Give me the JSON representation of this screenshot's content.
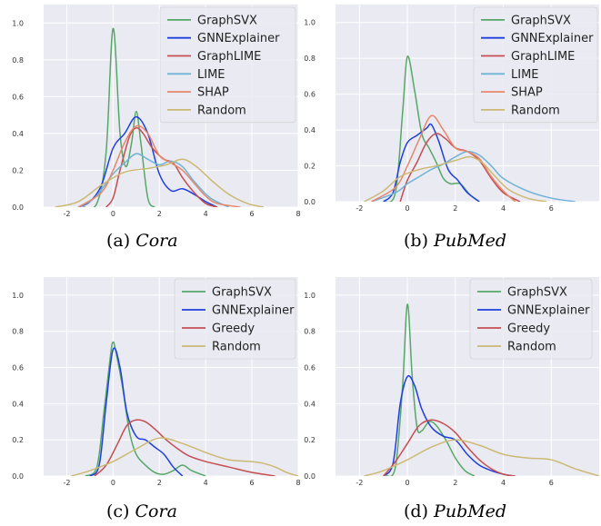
{
  "chart_data": [
    {
      "type": "line",
      "panel_label": "(a)",
      "dataset": "Cora",
      "xlim": [
        -3,
        8
      ],
      "ylim": [
        0,
        1.1
      ],
      "xticks": [
        -2,
        0,
        2,
        4,
        6,
        8
      ],
      "yticks": [
        0.0,
        0.2,
        0.4,
        0.6,
        0.8,
        1.0
      ],
      "grid": true,
      "legend_position": "top-right",
      "series": [
        {
          "name": "GraphSVX",
          "color": "#55a868",
          "x": [
            -1.3,
            -0.7,
            -0.3,
            0,
            0.3,
            0.55,
            0.8,
            1.0,
            1.2,
            1.5,
            1.8
          ],
          "y": [
            0,
            0.02,
            0.3,
            0.97,
            0.4,
            0.22,
            0.35,
            0.52,
            0.35,
            0.05,
            0
          ]
        },
        {
          "name": "GNNExplainer",
          "color": "#1f3fdd",
          "x": [
            -1.5,
            -1.0,
            -0.5,
            0,
            0.5,
            1.0,
            1.5,
            2.0,
            2.5,
            3.0,
            3.5,
            4.0,
            4.5
          ],
          "y": [
            0,
            0.03,
            0.12,
            0.32,
            0.4,
            0.49,
            0.4,
            0.18,
            0.09,
            0.1,
            0.07,
            0.03,
            0
          ]
        },
        {
          "name": "GraphLIME",
          "color": "#c44e52",
          "x": [
            -0.3,
            0,
            0.3,
            0.7,
            1.0,
            1.3,
            1.7,
            2.2,
            2.6,
            3.0,
            3.5,
            4.0,
            4.5
          ],
          "y": [
            0,
            0.05,
            0.2,
            0.38,
            0.43,
            0.4,
            0.32,
            0.26,
            0.24,
            0.16,
            0.08,
            0.02,
            0
          ]
        },
        {
          "name": "LIME",
          "color": "#6fb3d6",
          "x": [
            -1.5,
            -0.8,
            0,
            0.5,
            1.0,
            1.5,
            2.0,
            2.5,
            3.0,
            3.5,
            4.2,
            5.0
          ],
          "y": [
            0,
            0.05,
            0.18,
            0.24,
            0.29,
            0.26,
            0.23,
            0.25,
            0.22,
            0.14,
            0.05,
            0
          ]
        },
        {
          "name": "SHAP",
          "color": "#e8866a",
          "x": [
            -1.5,
            -0.5,
            0,
            0.5,
            1.0,
            1.5,
            2.0,
            2.5,
            3.0,
            3.5,
            4.0,
            4.5,
            5.5
          ],
          "y": [
            0,
            0.08,
            0.2,
            0.35,
            0.44,
            0.4,
            0.28,
            0.24,
            0.2,
            0.13,
            0.06,
            0.02,
            0
          ]
        },
        {
          "name": "Random",
          "color": "#ccb974",
          "x": [
            -2.5,
            -1.5,
            -0.5,
            0.5,
            1.5,
            2.3,
            3.0,
            3.6,
            4.3,
            5.0,
            5.8,
            6.5
          ],
          "y": [
            0,
            0.03,
            0.12,
            0.19,
            0.21,
            0.23,
            0.26,
            0.22,
            0.14,
            0.07,
            0.02,
            0
          ]
        }
      ]
    },
    {
      "type": "line",
      "panel_label": "(b)",
      "dataset": "PubMed",
      "xlim": [
        -3,
        8
      ],
      "ylim": [
        0,
        1.1
      ],
      "xticks": [
        -2,
        0,
        2,
        4,
        6
      ],
      "yticks": [
        0.0,
        0.2,
        0.4,
        0.6,
        0.8,
        1.0
      ],
      "grid": true,
      "legend_position": "top-right",
      "series": [
        {
          "name": "GraphSVX",
          "color": "#55a868",
          "x": [
            -1.0,
            -0.5,
            -0.2,
            0,
            0.3,
            0.6,
            0.9,
            1.2,
            1.5,
            1.8,
            2.2,
            2.6,
            3.0
          ],
          "y": [
            0,
            0.05,
            0.5,
            0.81,
            0.62,
            0.38,
            0.3,
            0.22,
            0.13,
            0.1,
            0.1,
            0.04,
            0
          ]
        },
        {
          "name": "GNNExplainer",
          "color": "#1f3fdd",
          "x": [
            -1.0,
            -0.6,
            -0.3,
            0,
            0.4,
            0.8,
            1.0,
            1.3,
            1.7,
            2.1,
            2.5,
            3.0
          ],
          "y": [
            0,
            0.05,
            0.22,
            0.33,
            0.37,
            0.41,
            0.43,
            0.34,
            0.18,
            0.12,
            0.05,
            0
          ]
        },
        {
          "name": "GraphLIME",
          "color": "#c44e52",
          "x": [
            -0.3,
            0,
            0.4,
            0.8,
            1.2,
            1.6,
            2.0,
            2.5,
            3.0,
            3.5,
            4.0,
            4.7
          ],
          "y": [
            0,
            0.12,
            0.22,
            0.33,
            0.38,
            0.35,
            0.3,
            0.28,
            0.23,
            0.13,
            0.05,
            0
          ]
        },
        {
          "name": "LIME",
          "color": "#6fb3d6",
          "x": [
            -1.5,
            -0.5,
            0,
            0.5,
            1.0,
            1.5,
            2.0,
            2.5,
            3.0,
            3.5,
            4.0,
            5.0,
            6.0,
            7.0
          ],
          "y": [
            0,
            0.05,
            0.1,
            0.14,
            0.18,
            0.21,
            0.25,
            0.28,
            0.26,
            0.2,
            0.13,
            0.06,
            0.02,
            0
          ]
        },
        {
          "name": "SHAP",
          "color": "#e8866a",
          "x": [
            -1.5,
            -0.5,
            0,
            0.5,
            1.0,
            1.5,
            2.0,
            2.5,
            3.0,
            3.5,
            4.0,
            4.5
          ],
          "y": [
            0,
            0.08,
            0.2,
            0.35,
            0.48,
            0.4,
            0.3,
            0.28,
            0.24,
            0.14,
            0.06,
            0
          ]
        },
        {
          "name": "Random",
          "color": "#ccb974",
          "x": [
            -1.8,
            -1.0,
            -0.3,
            0.5,
            1.2,
            2.0,
            2.6,
            3.1,
            3.6,
            4.2,
            5.0,
            5.8
          ],
          "y": [
            0,
            0.06,
            0.14,
            0.18,
            0.2,
            0.23,
            0.25,
            0.22,
            0.15,
            0.07,
            0.02,
            0
          ]
        }
      ]
    },
    {
      "type": "line",
      "panel_label": "(c)",
      "dataset": "Cora",
      "xlim": [
        -3,
        8
      ],
      "ylim": [
        0,
        1.1
      ],
      "xticks": [
        -2,
        0,
        2,
        4,
        6,
        8
      ],
      "yticks": [
        0.0,
        0.2,
        0.4,
        0.6,
        0.8,
        1.0
      ],
      "grid": true,
      "legend_position": "top-right",
      "series": [
        {
          "name": "GraphSVX",
          "color": "#55a868",
          "x": [
            -1.2,
            -0.7,
            -0.4,
            -0.1,
            0,
            0.1,
            0.4,
            0.7,
            1.0,
            1.4,
            1.8,
            2.2,
            2.6,
            3.0,
            3.4,
            4.0
          ],
          "y": [
            0,
            0.05,
            0.35,
            0.68,
            0.74,
            0.7,
            0.5,
            0.25,
            0.12,
            0.06,
            0.02,
            0.01,
            0.03,
            0.06,
            0.03,
            0
          ]
        },
        {
          "name": "GNNExplainer",
          "color": "#1f3fdd",
          "x": [
            -1.0,
            -0.6,
            -0.3,
            0,
            0.3,
            0.6,
            1.0,
            1.4,
            1.8,
            2.2,
            2.6,
            3.0
          ],
          "y": [
            0,
            0.06,
            0.4,
            0.7,
            0.6,
            0.35,
            0.22,
            0.2,
            0.16,
            0.12,
            0.05,
            0
          ]
        },
        {
          "name": "Greedy",
          "color": "#c44e52",
          "x": [
            -0.8,
            -0.3,
            0.2,
            0.6,
            1.0,
            1.4,
            1.8,
            2.3,
            2.8,
            3.3,
            4.0,
            5.0,
            6.0,
            7.0
          ],
          "y": [
            0,
            0.06,
            0.18,
            0.28,
            0.31,
            0.3,
            0.26,
            0.2,
            0.15,
            0.11,
            0.08,
            0.05,
            0.02,
            0
          ]
        },
        {
          "name": "Random",
          "color": "#ccb974",
          "x": [
            -1.8,
            -1.0,
            0,
            1.0,
            2.0,
            3.0,
            4.0,
            5.0,
            6.0,
            6.5,
            7.0,
            7.5,
            8.0
          ],
          "y": [
            0,
            0.03,
            0.08,
            0.15,
            0.21,
            0.18,
            0.13,
            0.09,
            0.08,
            0.07,
            0.05,
            0.02,
            0
          ]
        }
      ]
    },
    {
      "type": "line",
      "panel_label": "(d)",
      "dataset": "PubMed",
      "xlim": [
        -3,
        8
      ],
      "ylim": [
        0,
        1.1
      ],
      "xticks": [
        -2,
        0,
        2,
        4,
        6
      ],
      "yticks": [
        0.0,
        0.2,
        0.4,
        0.6,
        0.8,
        1.0
      ],
      "grid": true,
      "legend_position": "top-right",
      "series": [
        {
          "name": "GraphSVX",
          "color": "#55a868",
          "x": [
            -0.9,
            -0.5,
            -0.2,
            0,
            0.2,
            0.4,
            0.6,
            0.9,
            1.2,
            1.6,
            2.0,
            2.4,
            2.8
          ],
          "y": [
            0,
            0.05,
            0.5,
            0.95,
            0.55,
            0.27,
            0.25,
            0.3,
            0.28,
            0.2,
            0.1,
            0.03,
            0
          ]
        },
        {
          "name": "GNNExplainer",
          "color": "#1f3fdd",
          "x": [
            -1.0,
            -0.6,
            -0.3,
            0,
            0.3,
            0.6,
            1.0,
            1.5,
            2.0,
            2.5,
            3.0,
            3.5,
            4.0,
            4.4
          ],
          "y": [
            0,
            0.07,
            0.4,
            0.55,
            0.5,
            0.37,
            0.27,
            0.22,
            0.2,
            0.12,
            0.06,
            0.03,
            0.01,
            0
          ]
        },
        {
          "name": "Greedy",
          "color": "#c44e52",
          "x": [
            -1.0,
            -0.5,
            0,
            0.5,
            1.0,
            1.5,
            2.0,
            2.5,
            3.0,
            3.5,
            4.0,
            4.5
          ],
          "y": [
            0,
            0.08,
            0.18,
            0.28,
            0.31,
            0.29,
            0.24,
            0.16,
            0.09,
            0.04,
            0.01,
            0
          ]
        },
        {
          "name": "Random",
          "color": "#ccb974",
          "x": [
            -1.8,
            -1.0,
            0,
            1.0,
            2.0,
            3.0,
            4.0,
            5.0,
            6.0,
            7.0,
            8.0
          ],
          "y": [
            0,
            0.03,
            0.09,
            0.16,
            0.2,
            0.17,
            0.12,
            0.1,
            0.09,
            0.04,
            0
          ]
        }
      ]
    }
  ],
  "captions": [
    {
      "label": "(a)",
      "dataset": "Cora"
    },
    {
      "label": "(b)",
      "dataset": "PubMed"
    },
    {
      "label": "(c)",
      "dataset": "Cora"
    },
    {
      "label": "(d)",
      "dataset": "PubMed"
    }
  ]
}
